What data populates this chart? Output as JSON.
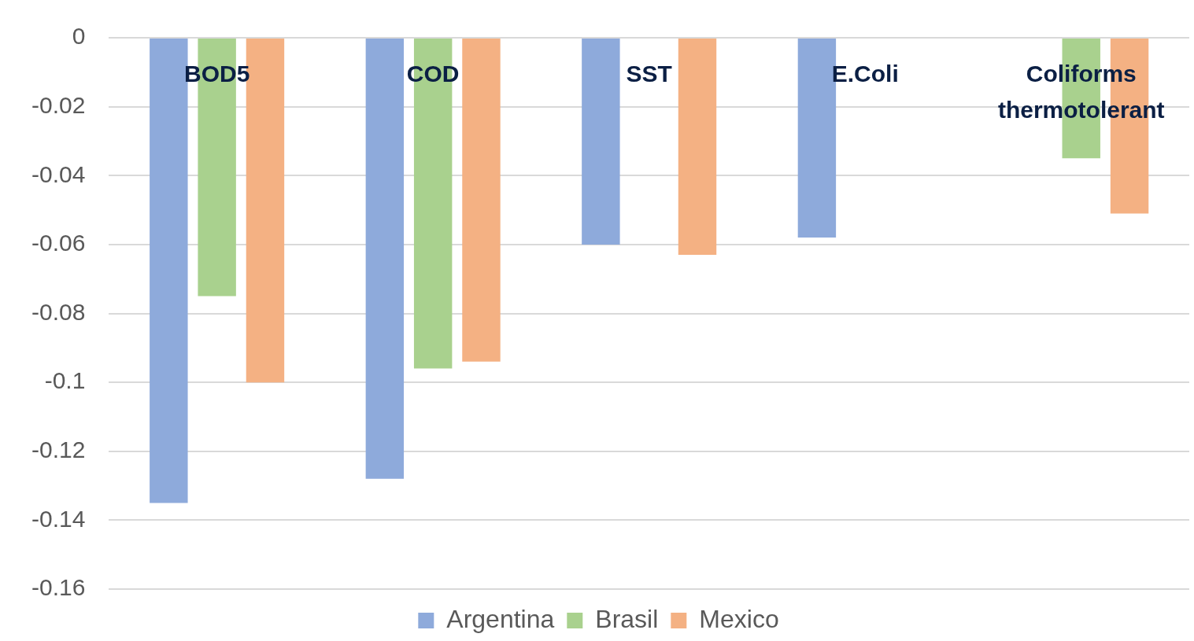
{
  "chart_data": {
    "type": "bar",
    "categories": [
      "BOD5",
      "COD",
      "SST",
      "E.Coli",
      "Coliforms thermotolerant"
    ],
    "series": [
      {
        "name": "Argentina",
        "color": "#8eaadb",
        "values": [
          -0.135,
          -0.128,
          -0.06,
          -0.058,
          null
        ]
      },
      {
        "name": "Brasil",
        "color": "#a9d18e",
        "values": [
          -0.075,
          -0.096,
          null,
          null,
          -0.035
        ]
      },
      {
        "name": "Mexico",
        "color": "#f4b183",
        "values": [
          -0.1,
          -0.094,
          -0.063,
          null,
          -0.051
        ]
      }
    ],
    "ylim": [
      -0.16,
      0
    ],
    "yticks": [
      0,
      -0.02,
      -0.04,
      -0.06,
      -0.08,
      -0.1,
      -0.12,
      -0.14,
      -0.16
    ],
    "grid": "y",
    "legend": "bottom"
  }
}
